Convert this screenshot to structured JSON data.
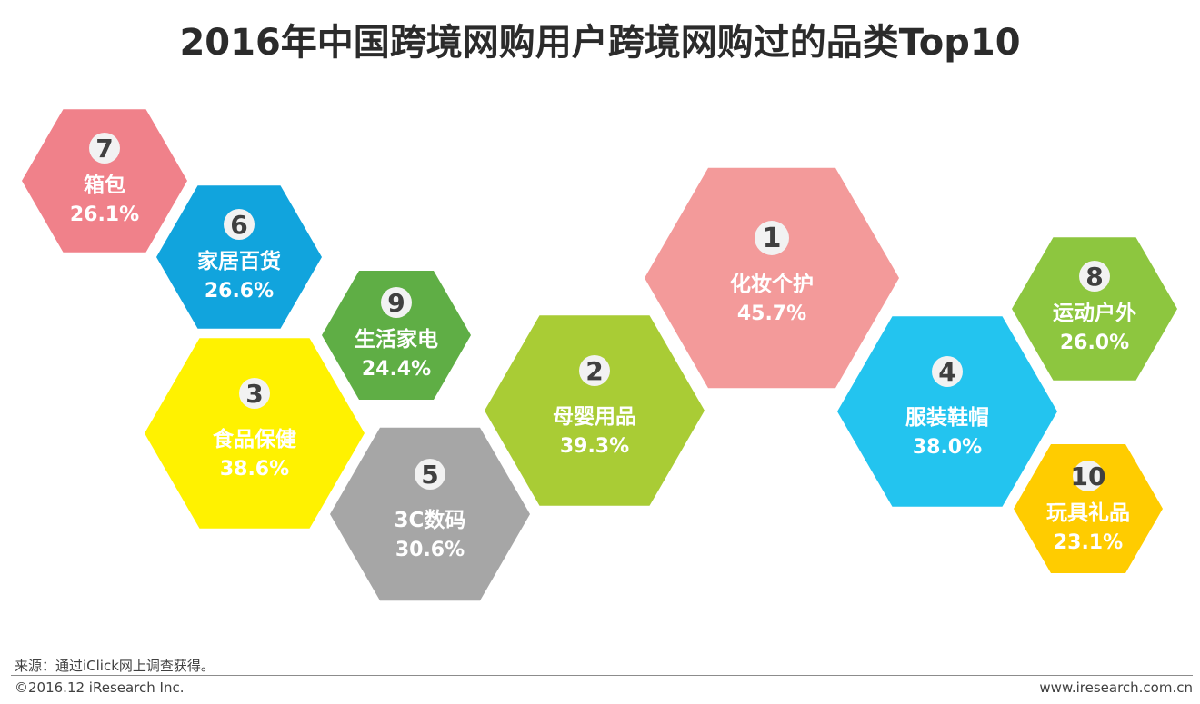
{
  "title": "2016年中国跨境网购用户跨境网购过的品类Top10",
  "source": "来源：通过iClick网上调查获得。",
  "copyright": "©2016.12 iResearch Inc.",
  "website": "www.iresearch.com.cn",
  "chart_data": {
    "type": "other",
    "title": "2016年中国跨境网购用户跨境网购过的品类Top10",
    "unit": "%",
    "items": [
      {
        "rank": 1,
        "category": "化妆个护",
        "value": 45.7,
        "label": "45.7%",
        "color": "#f39a9a"
      },
      {
        "rank": 2,
        "category": "母婴用品",
        "value": 39.3,
        "label": "39.3%",
        "color": "#a9cc35"
      },
      {
        "rank": 3,
        "category": "食品保健",
        "value": 38.6,
        "label": "38.6%",
        "color": "#fff200"
      },
      {
        "rank": 4,
        "category": "服装鞋帽",
        "value": 38.0,
        "label": "38.0%",
        "color": "#23c4ef"
      },
      {
        "rank": 5,
        "category": "3C数码",
        "value": 30.6,
        "label": "30.6%",
        "color": "#a6a6a6"
      },
      {
        "rank": 6,
        "category": "家居百货",
        "value": 26.6,
        "label": "26.6%",
        "color": "#11a4dd"
      },
      {
        "rank": 7,
        "category": "箱包",
        "value": 26.1,
        "label": "26.1%",
        "color": "#f0818a"
      },
      {
        "rank": 8,
        "category": "运动户外",
        "value": 26.0,
        "label": "26.0%",
        "color": "#8dc63f"
      },
      {
        "rank": 9,
        "category": "生活家电",
        "value": 24.4,
        "label": "24.4%",
        "color": "#5fae45"
      },
      {
        "rank": 10,
        "category": "玩具礼品",
        "value": 23.1,
        "label": "23.1%",
        "color": "#ffcc00"
      }
    ]
  }
}
